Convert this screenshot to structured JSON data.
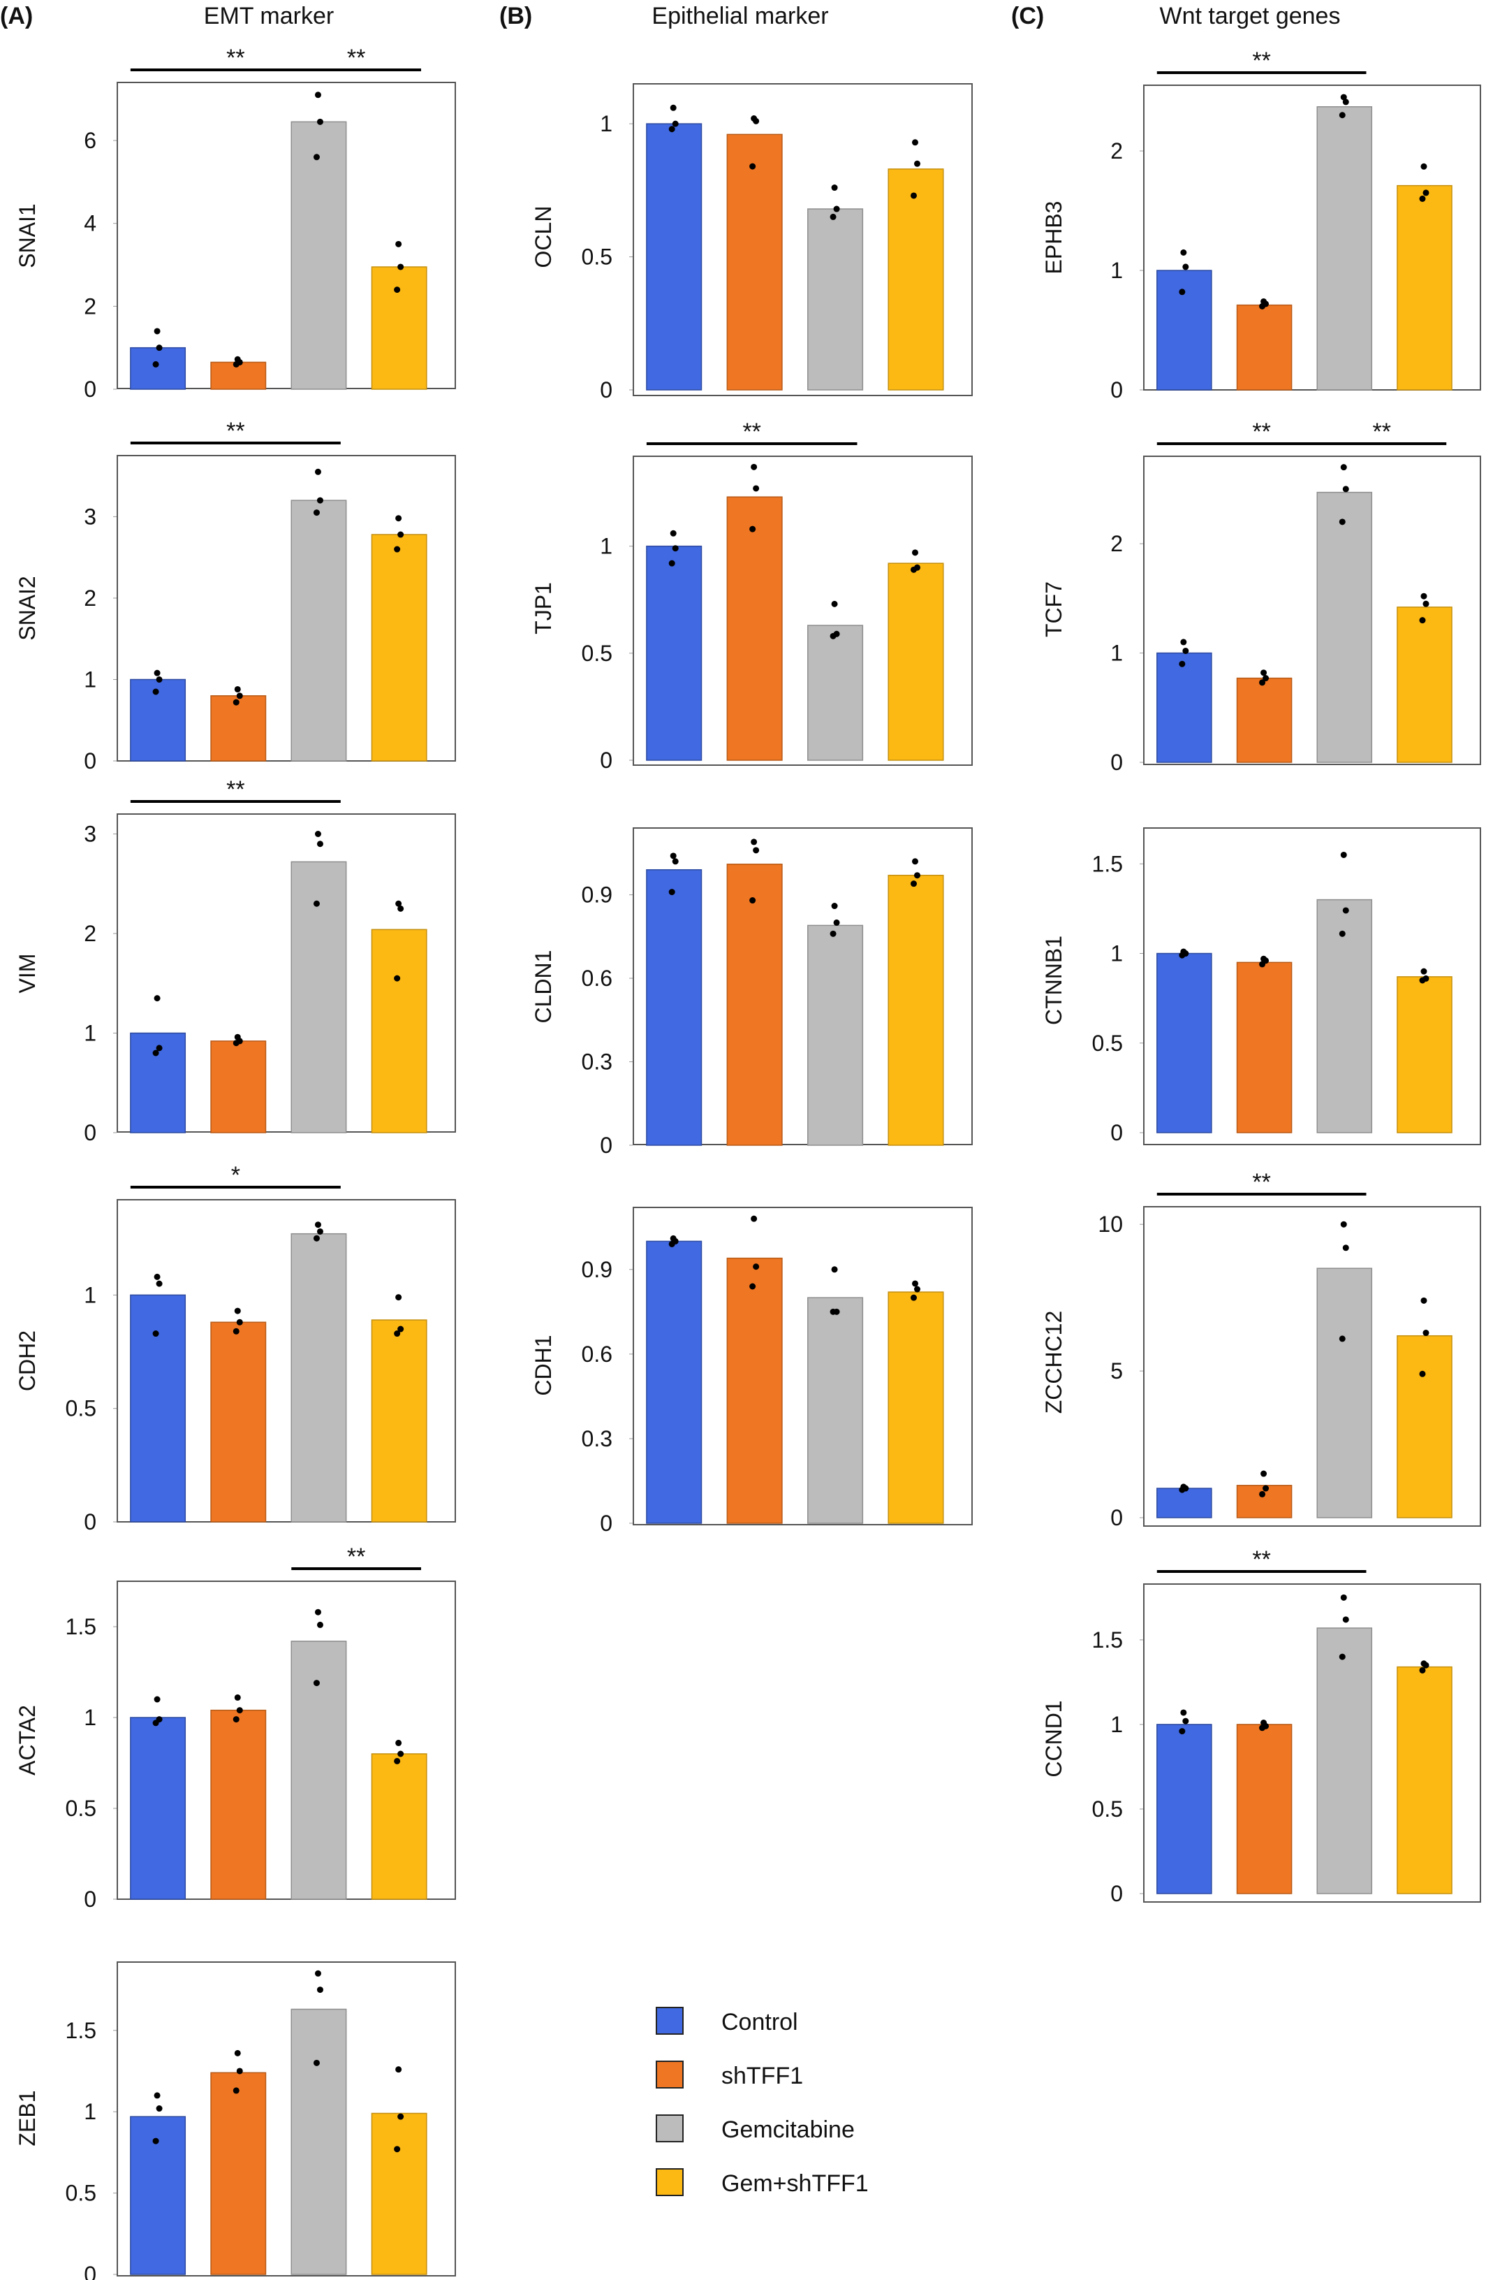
{
  "panels": [
    {
      "label": "(A)",
      "title": "EMT marker"
    },
    {
      "label": "(B)",
      "title": "Epithelial marker"
    },
    {
      "label": "(C)",
      "title": "Wnt target genes"
    }
  ],
  "legend": [
    {
      "label": "Control",
      "color": "#4169e1"
    },
    {
      "label": "shTFF1",
      "color": "#ef7622"
    },
    {
      "label": "Gemcitabine",
      "color": "#bcbcbc"
    },
    {
      "label": "Gem+shTFF1",
      "color": "#fdb913"
    }
  ],
  "chart_data": [
    {
      "type": "bar",
      "panel": "(A)",
      "ylabel": "SNAI1",
      "categories": [
        "Control",
        "shTFF1",
        "Gemcitabine",
        "Gem+shTFF1"
      ],
      "values": [
        1.0,
        0.65,
        6.45,
        2.95
      ],
      "yticks": [
        0,
        2,
        4,
        6
      ],
      "ytick_labels": [
        "0",
        "2",
        "4",
        "6"
      ],
      "ylim": [
        0,
        7.4
      ],
      "points": [
        [
          0.6,
          1.0,
          1.4
        ],
        [
          0.6,
          0.65,
          0.72
        ],
        [
          5.6,
          6.45,
          7.1
        ],
        [
          2.4,
          2.95,
          3.5
        ]
      ],
      "significance": [
        {
          "from": 0,
          "to": 2,
          "label": "**"
        },
        {
          "from": 2,
          "to": 3,
          "label": "**"
        }
      ]
    },
    {
      "type": "bar",
      "panel": "(A)",
      "ylabel": "SNAI2",
      "categories": [
        "Control",
        "shTFF1",
        "Gemcitabine",
        "Gem+shTFF1"
      ],
      "values": [
        1.0,
        0.8,
        3.2,
        2.78
      ],
      "yticks": [
        0,
        1,
        2,
        3
      ],
      "ytick_labels": [
        "0",
        "1",
        "2",
        "3"
      ],
      "ylim": [
        0,
        3.75
      ],
      "points": [
        [
          0.85,
          1.0,
          1.08
        ],
        [
          0.72,
          0.8,
          0.88
        ],
        [
          3.05,
          3.2,
          3.55
        ],
        [
          2.6,
          2.78,
          2.98
        ]
      ],
      "significance": [
        {
          "from": 0,
          "to": 2,
          "label": "**"
        }
      ]
    },
    {
      "type": "bar",
      "panel": "(A)",
      "ylabel": "VIM",
      "categories": [
        "Control",
        "shTFF1",
        "Gemcitabine",
        "Gem+shTFF1"
      ],
      "values": [
        1.0,
        0.92,
        2.72,
        2.04
      ],
      "yticks": [
        0,
        1,
        2,
        3
      ],
      "ytick_labels": [
        "0",
        "1",
        "2",
        "3"
      ],
      "ylim": [
        0,
        3.2
      ],
      "points": [
        [
          0.8,
          0.85,
          1.35
        ],
        [
          0.9,
          0.92,
          0.96
        ],
        [
          2.3,
          2.9,
          3.0
        ],
        [
          1.55,
          2.25,
          2.3
        ]
      ],
      "significance": [
        {
          "from": 0,
          "to": 2,
          "label": "**"
        }
      ]
    },
    {
      "type": "bar",
      "panel": "(A)",
      "ylabel": "CDH2",
      "categories": [
        "Control",
        "shTFF1",
        "Gemcitabine",
        "Gem+shTFF1"
      ],
      "values": [
        1.0,
        0.88,
        1.27,
        0.89
      ],
      "yticks": [
        0,
        0.5,
        1
      ],
      "ytick_labels": [
        "0",
        "0.5",
        "1"
      ],
      "ylim": [
        0,
        1.42
      ],
      "points": [
        [
          0.83,
          1.05,
          1.08
        ],
        [
          0.84,
          0.88,
          0.93
        ],
        [
          1.25,
          1.28,
          1.31
        ],
        [
          0.83,
          0.85,
          0.99
        ]
      ],
      "significance": [
        {
          "from": 0,
          "to": 2,
          "label": "*"
        }
      ]
    },
    {
      "type": "bar",
      "panel": "(A)",
      "ylabel": "ACTA2",
      "categories": [
        "Control",
        "shTFF1",
        "Gemcitabine",
        "Gem+shTFF1"
      ],
      "values": [
        1.0,
        1.04,
        1.42,
        0.8
      ],
      "yticks": [
        0,
        0.5,
        1,
        1.5
      ],
      "ytick_labels": [
        "0",
        "0.5",
        "1",
        "1.5"
      ],
      "ylim": [
        0,
        1.75
      ],
      "points": [
        [
          0.97,
          0.99,
          1.1
        ],
        [
          0.99,
          1.04,
          1.11
        ],
        [
          1.19,
          1.51,
          1.58
        ],
        [
          0.76,
          0.8,
          0.86
        ]
      ],
      "significance": [
        {
          "from": 2,
          "to": 3,
          "label": "**"
        }
      ]
    },
    {
      "type": "bar",
      "panel": "(A)",
      "ylabel": "ZEB1",
      "categories": [
        "Control",
        "shTFF1",
        "Gemcitabine",
        "Gem+shTFF1"
      ],
      "values": [
        0.97,
        1.24,
        1.63,
        0.99
      ],
      "yticks": [
        0,
        0.5,
        1,
        1.5
      ],
      "ytick_labels": [
        "0",
        "0.5",
        "1",
        "1.5"
      ],
      "ylim": [
        0,
        1.92
      ],
      "points": [
        [
          0.82,
          1.02,
          1.1
        ],
        [
          1.13,
          1.25,
          1.36
        ],
        [
          1.3,
          1.75,
          1.85
        ],
        [
          0.77,
          0.97,
          1.26
        ]
      ],
      "significance": []
    },
    {
      "type": "bar",
      "panel": "(B)",
      "ylabel": "OCLN",
      "categories": [
        "Control",
        "shTFF1",
        "Gemcitabine",
        "Gem+shTFF1"
      ],
      "values": [
        1.0,
        0.96,
        0.68,
        0.83
      ],
      "yticks": [
        0,
        0.5,
        1
      ],
      "ytick_labels": [
        "0",
        "0.5",
        "1"
      ],
      "ylim": [
        0,
        1.15
      ],
      "points": [
        [
          0.98,
          1.0,
          1.06
        ],
        [
          0.84,
          1.01,
          1.02
        ],
        [
          0.65,
          0.68,
          0.76
        ],
        [
          0.73,
          0.85,
          0.93
        ]
      ],
      "significance": []
    },
    {
      "type": "bar",
      "panel": "(B)",
      "ylabel": "TJP1",
      "categories": [
        "Control",
        "shTFF1",
        "Gemcitabine",
        "Gem+shTFF1"
      ],
      "values": [
        1.0,
        1.23,
        0.63,
        0.92
      ],
      "yticks": [
        0,
        0.5,
        1
      ],
      "ytick_labels": [
        "0",
        "0.5",
        "1"
      ],
      "ylim": [
        0,
        1.42
      ],
      "points": [
        [
          0.92,
          0.99,
          1.06
        ],
        [
          1.08,
          1.27,
          1.37
        ],
        [
          0.58,
          0.59,
          0.73
        ],
        [
          0.89,
          0.9,
          0.97
        ]
      ],
      "significance": [
        {
          "from": 0,
          "to": 2,
          "label": "**"
        }
      ]
    },
    {
      "type": "bar",
      "panel": "(B)",
      "ylabel": "CLDN1",
      "categories": [
        "Control",
        "shTFF1",
        "Gemcitabine",
        "Gem+shTFF1"
      ],
      "values": [
        0.99,
        1.01,
        0.79,
        0.97
      ],
      "yticks": [
        0,
        0.3,
        0.6,
        0.9
      ],
      "ytick_labels": [
        "0",
        "0.3",
        "0.6",
        "0.9"
      ],
      "ylim": [
        0,
        1.14
      ],
      "points": [
        [
          0.91,
          1.02,
          1.04
        ],
        [
          0.88,
          1.06,
          1.09
        ],
        [
          0.76,
          0.8,
          0.86
        ],
        [
          0.94,
          0.97,
          1.02
        ]
      ],
      "significance": []
    },
    {
      "type": "bar",
      "panel": "(B)",
      "ylabel": "CDH1",
      "categories": [
        "Control",
        "shTFF1",
        "Gemcitabine",
        "Gem+shTFF1"
      ],
      "values": [
        1.0,
        0.94,
        0.8,
        0.82
      ],
      "yticks": [
        0,
        0.3,
        0.6,
        0.9
      ],
      "ytick_labels": [
        "0",
        "0.3",
        "0.6",
        "0.9"
      ],
      "ylim": [
        0,
        1.12
      ],
      "points": [
        [
          0.99,
          1.0,
          1.01
        ],
        [
          0.84,
          0.91,
          1.08
        ],
        [
          0.75,
          0.75,
          0.9
        ],
        [
          0.8,
          0.83,
          0.85
        ]
      ],
      "significance": []
    },
    {
      "type": "bar",
      "panel": "(C)",
      "ylabel": "EPHB3",
      "categories": [
        "Control",
        "shTFF1",
        "Gemcitabine",
        "Gem+shTFF1"
      ],
      "values": [
        1.0,
        0.71,
        2.37,
        1.71
      ],
      "yticks": [
        0,
        1,
        2
      ],
      "ytick_labels": [
        "0",
        "1",
        "2"
      ],
      "ylim": [
        0,
        2.55
      ],
      "points": [
        [
          0.82,
          1.03,
          1.15
        ],
        [
          0.7,
          0.72,
          0.74
        ],
        [
          2.3,
          2.41,
          2.45
        ],
        [
          1.6,
          1.65,
          1.87
        ]
      ],
      "significance": [
        {
          "from": 0,
          "to": 2,
          "label": "**"
        }
      ]
    },
    {
      "type": "bar",
      "panel": "(C)",
      "ylabel": "TCF7",
      "categories": [
        "Control",
        "shTFF1",
        "Gemcitabine",
        "Gem+shTFF1"
      ],
      "values": [
        1.0,
        0.77,
        2.47,
        1.42
      ],
      "yticks": [
        0,
        1,
        2
      ],
      "ytick_labels": [
        "0",
        "1",
        "2"
      ],
      "ylim": [
        0,
        2.8
      ],
      "points": [
        [
          0.9,
          1.02,
          1.1
        ],
        [
          0.73,
          0.77,
          0.82
        ],
        [
          2.2,
          2.5,
          2.7
        ],
        [
          1.3,
          1.45,
          1.52
        ]
      ],
      "significance": [
        {
          "from": 0,
          "to": 2,
          "label": "**"
        },
        {
          "from": 2,
          "to": 3,
          "label": "**"
        }
      ]
    },
    {
      "type": "bar",
      "panel": "(C)",
      "ylabel": "CTNNB1",
      "categories": [
        "Control",
        "shTFF1",
        "Gemcitabine",
        "Gem+shTFF1"
      ],
      "values": [
        1.0,
        0.95,
        1.3,
        0.87
      ],
      "yticks": [
        0,
        0.5,
        1,
        1.5
      ],
      "ytick_labels": [
        "0",
        "0.5",
        "1",
        "1.5"
      ],
      "ylim": [
        0,
        1.7
      ],
      "points": [
        [
          0.99,
          1.0,
          1.01
        ],
        [
          0.94,
          0.96,
          0.97
        ],
        [
          1.11,
          1.24,
          1.55
        ],
        [
          0.85,
          0.86,
          0.9
        ]
      ],
      "significance": []
    },
    {
      "type": "bar",
      "panel": "(C)",
      "ylabel": "ZCCHC12",
      "categories": [
        "Control",
        "shTFF1",
        "Gemcitabine",
        "Gem+shTFF1"
      ],
      "values": [
        1.0,
        1.1,
        8.5,
        6.2
      ],
      "yticks": [
        0,
        5,
        10
      ],
      "ytick_labels": [
        "0",
        "5",
        "10"
      ],
      "ylim": [
        0,
        10.6
      ],
      "points": [
        [
          0.95,
          1.0,
          1.05
        ],
        [
          0.8,
          1.0,
          1.5
        ],
        [
          6.1,
          9.2,
          10.0
        ],
        [
          4.9,
          6.3,
          7.4
        ]
      ],
      "significance": [
        {
          "from": 0,
          "to": 2,
          "label": "**"
        }
      ]
    },
    {
      "type": "bar",
      "panel": "(C)",
      "ylabel": "CCND1",
      "categories": [
        "Control",
        "shTFF1",
        "Gemcitabine",
        "Gem+shTFF1"
      ],
      "values": [
        1.0,
        1.0,
        1.57,
        1.34
      ],
      "yticks": [
        0,
        0.5,
        1,
        1.5
      ],
      "ytick_labels": [
        "0",
        "0.5",
        "1",
        "1.5"
      ],
      "ylim": [
        0,
        1.83
      ],
      "points": [
        [
          0.96,
          1.02,
          1.07
        ],
        [
          0.98,
          0.99,
          1.01
        ],
        [
          1.4,
          1.62,
          1.75
        ],
        [
          1.32,
          1.35,
          1.36
        ]
      ],
      "significance": [
        {
          "from": 0,
          "to": 2,
          "label": "**"
        }
      ]
    }
  ]
}
